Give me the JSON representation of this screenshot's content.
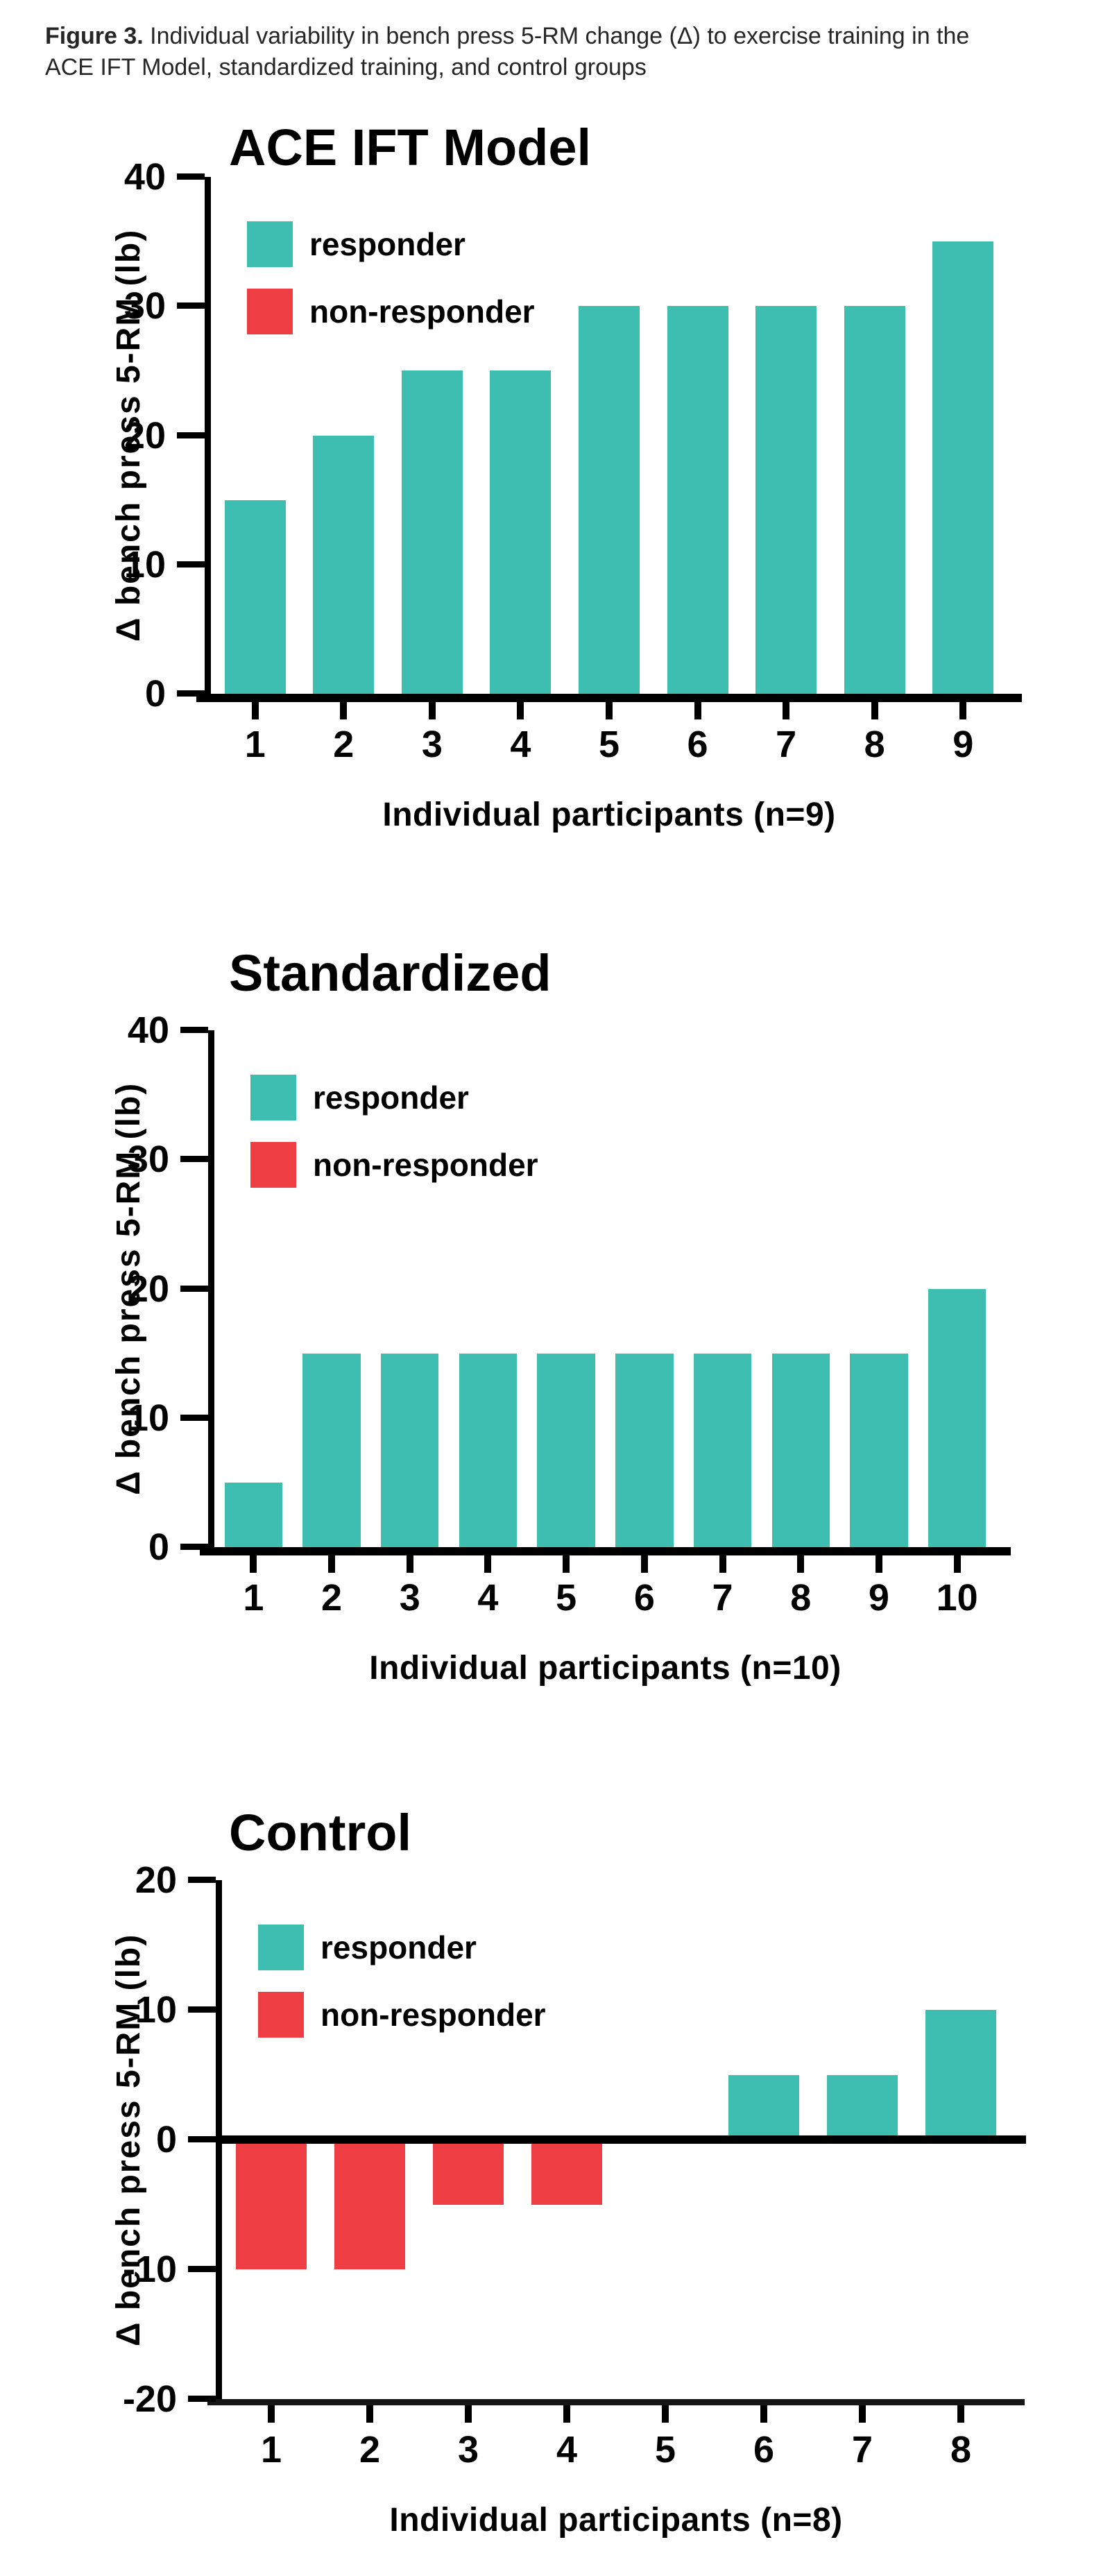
{
  "caption": {
    "label": "Figure 3.",
    "line1_rest": " Individual variability in bench press 5-RM change (Δ) to exercise training in the",
    "line2": "ACE IFT Model, standardized training, and control groups"
  },
  "legend": {
    "responder_label": "responder",
    "non_responder_label": "non-responder"
  },
  "colors": {
    "responder": "#3EBEB0",
    "non_responder": "#EE3E44",
    "axis": "#000000",
    "text": "#000000",
    "background": "#FFFFFF"
  },
  "chart_data": [
    {
      "type": "bar",
      "title": "ACE IFT Model",
      "ylabel": "Δ bench press 5-RM (lb)",
      "xlabel": "Individual participants (n=9)",
      "n": 9,
      "ylim": [
        0,
        40
      ],
      "yticks": [
        0,
        10,
        20,
        30,
        40
      ],
      "grid": false,
      "legend_position": "top-left",
      "legend_entries": [
        "responder",
        "non-responder"
      ],
      "categories": [
        "1",
        "2",
        "3",
        "4",
        "5",
        "6",
        "7",
        "8",
        "9"
      ],
      "values": [
        15,
        20,
        25,
        25,
        30,
        30,
        30,
        30,
        35
      ],
      "bar_roles": [
        "responder",
        "responder",
        "responder",
        "responder",
        "responder",
        "responder",
        "responder",
        "responder",
        "responder"
      ]
    },
    {
      "type": "bar",
      "title": "Standardized",
      "ylabel": "Δ bench press 5-RM (lb)",
      "xlabel": "Individual participants (n=10)",
      "n": 10,
      "ylim": [
        0,
        40
      ],
      "yticks": [
        0,
        10,
        20,
        30,
        40
      ],
      "grid": false,
      "legend_position": "top-left",
      "legend_entries": [
        "responder",
        "non-responder"
      ],
      "categories": [
        "1",
        "2",
        "3",
        "4",
        "5",
        "6",
        "7",
        "8",
        "9",
        "10"
      ],
      "values": [
        5,
        15,
        15,
        15,
        15,
        15,
        15,
        15,
        15,
        20
      ],
      "bar_roles": [
        "responder",
        "responder",
        "responder",
        "responder",
        "responder",
        "responder",
        "responder",
        "responder",
        "responder",
        "responder"
      ]
    },
    {
      "type": "bar",
      "title": "Control",
      "ylabel": "Δ bench press 5-RM (lb)",
      "xlabel": "Individual participants (n=8)",
      "n": 8,
      "ylim": [
        -20,
        20
      ],
      "yticks": [
        -20,
        -10,
        0,
        10,
        20
      ],
      "grid": false,
      "legend_position": "top-left",
      "legend_entries": [
        "responder",
        "non-responder"
      ],
      "categories": [
        "1",
        "2",
        "3",
        "4",
        "5",
        "6",
        "7",
        "8"
      ],
      "values": [
        -10,
        -10,
        -5,
        -5,
        0,
        5,
        5,
        10
      ],
      "bar_roles": [
        "non-responder",
        "non-responder",
        "non-responder",
        "non-responder",
        "none",
        "responder",
        "responder",
        "responder"
      ]
    }
  ]
}
